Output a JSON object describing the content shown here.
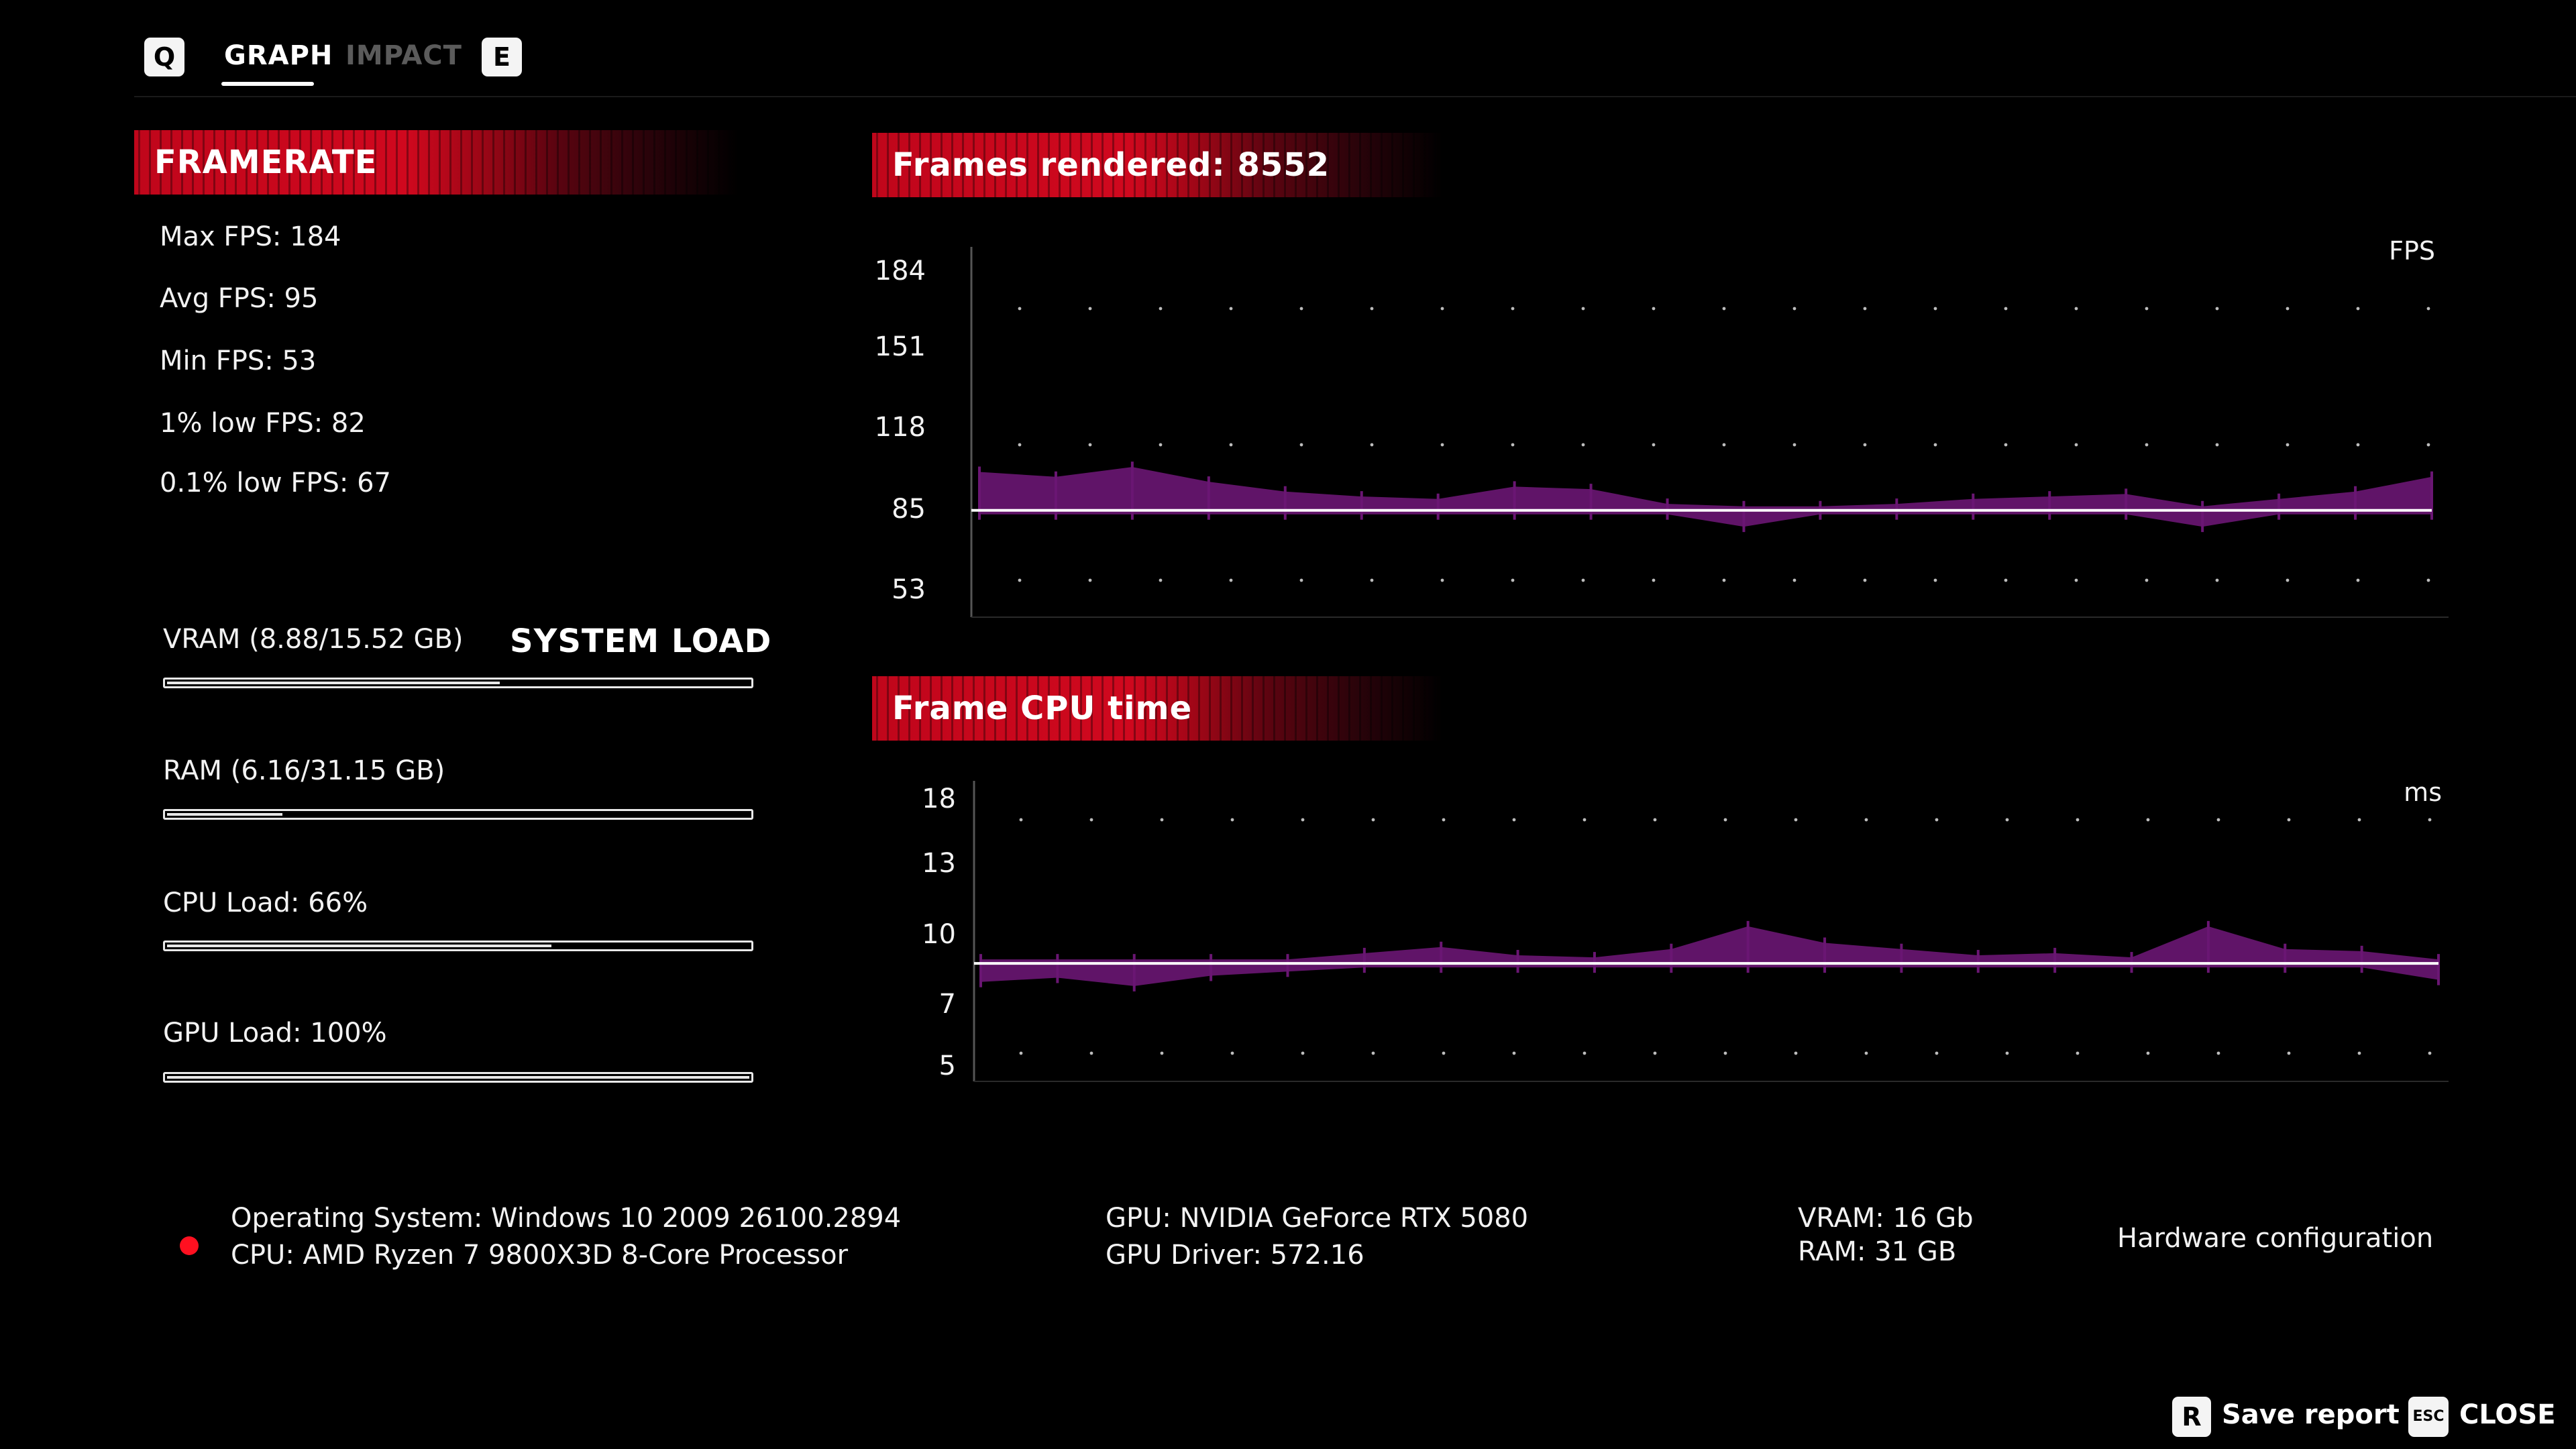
{
  "tabs": {
    "prev_key": "Q",
    "next_key": "E",
    "items": [
      {
        "label": "GRAPH",
        "active": true
      },
      {
        "label": "IMPACT",
        "active": false
      }
    ]
  },
  "framerate": {
    "header": "FRAMERATE",
    "stats": [
      "Max FPS: 184",
      "Avg FPS: 95",
      "Min FPS: 53",
      "1% low FPS: 82",
      "0.1% low FPS: 67"
    ]
  },
  "system_load": {
    "title": "SYSTEM LOAD",
    "bars": [
      {
        "label": "VRAM (8.88/15.52 GB)",
        "fraction": 0.572
      },
      {
        "label": "RAM (6.16/31.15 GB)",
        "fraction": 0.198
      },
      {
        "label": "CPU Load: 66%",
        "fraction": 0.66
      },
      {
        "label": "GPU Load: 100%",
        "fraction": 1.0
      }
    ]
  },
  "fps_chart": {
    "header": "Frames rendered: 8552",
    "unit": "FPS",
    "ticks": [
      "184",
      "151",
      "118",
      "85",
      "53"
    ],
    "series_color": "#6a1673",
    "avg_line_color": "#ffffff"
  },
  "cpu_chart": {
    "header": "Frame CPU time",
    "unit": "ms",
    "ticks": [
      "18",
      "13",
      "10",
      "7",
      "5"
    ],
    "series_color": "#6a1673",
    "avg_line_color": "#ffffff"
  },
  "chart_data": [
    {
      "type": "area",
      "ylabel": "FPS",
      "y_ticks": [
        184,
        151,
        118,
        85,
        53
      ],
      "ylim": [
        53,
        184
      ],
      "reference_line": 85,
      "x_points": 20,
      "values": [
        99,
        97,
        101,
        95,
        91,
        89,
        88,
        93,
        92,
        86,
        80,
        85,
        86,
        88,
        89,
        90,
        80,
        88,
        91,
        97
      ],
      "grid": "dotted"
    },
    {
      "type": "area",
      "ylabel": "ms",
      "y_ticks": [
        18,
        13,
        10,
        7,
        5
      ],
      "ylim": [
        5,
        18
      ],
      "reference_line": 10,
      "x_points": 20,
      "values": [
        9.3,
        9.5,
        9.1,
        9.6,
        9.8,
        10.3,
        10.6,
        10.2,
        10.1,
        10.5,
        11.6,
        10.8,
        10.5,
        10.2,
        10.3,
        10.1,
        11.6,
        10.5,
        10.4,
        9.4
      ],
      "grid": "dotted"
    }
  ],
  "hardware": {
    "os": "Operating System: Windows 10 2009 26100.2894",
    "cpu": "CPU: AMD Ryzen 7 9800X3D 8-Core Processor",
    "gpu": "GPU: NVIDIA GeForce RTX 5080",
    "gpu_driver": "GPU Driver: 572.16",
    "vram": "VRAM: 16 Gb",
    "ram": "RAM: 31 GB",
    "config_label": "Hardware configuration"
  },
  "footer": {
    "save_key": "R",
    "save_label": "Save report",
    "close_key": "ESC",
    "close_label": "CLOSE"
  }
}
